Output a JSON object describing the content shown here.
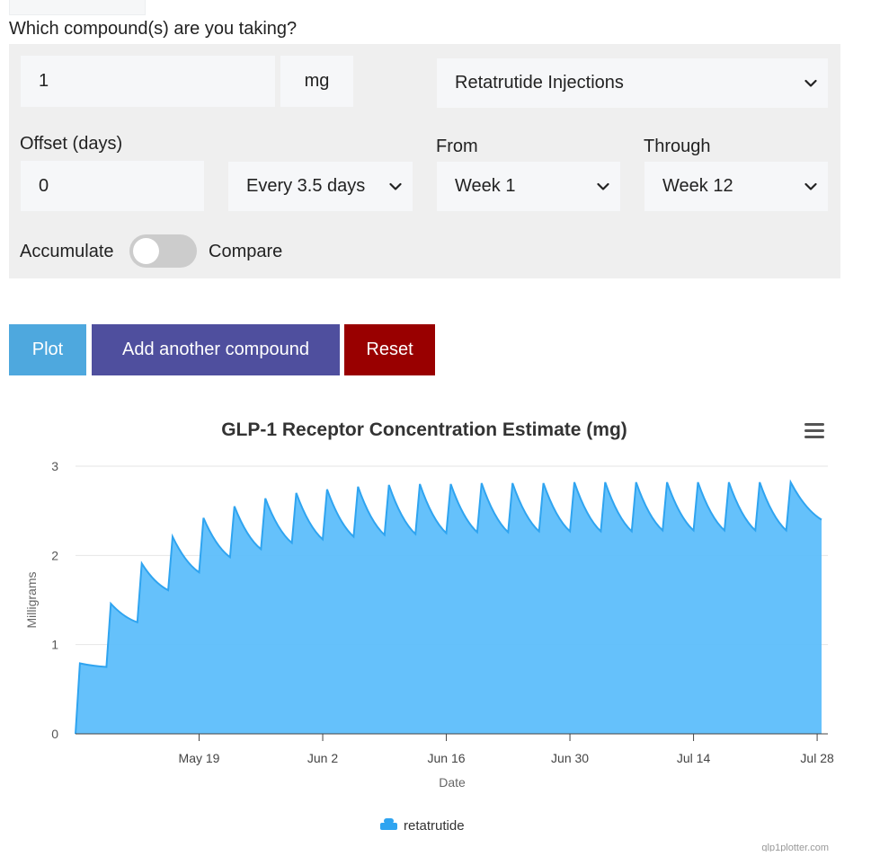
{
  "form": {
    "question": "Which compound(s) are you taking?",
    "dose_value": "1",
    "dose_unit": "mg",
    "compound": "Retatrutide Injections",
    "offset_label": "Offset (days)",
    "offset_value": "0",
    "frequency": "Every 3.5 days",
    "from_label": "From",
    "from_value": "Week 1",
    "through_label": "Through",
    "through_value": "Week 12",
    "toggle_left": "Accumulate",
    "toggle_right": "Compare"
  },
  "buttons": {
    "plot": "Plot",
    "add": "Add another compound",
    "reset": "Reset"
  },
  "colors": {
    "plot": "#4ea8de",
    "add": "#4f4f9e",
    "reset": "#990000",
    "area": "#5dbefb",
    "line": "#2fa4f0"
  },
  "chart_data": {
    "type": "area",
    "title": "GLP-1 Receptor Concentration Estimate (mg)",
    "xlabel": "Date",
    "ylabel": "Milligrams",
    "ylim": [
      0,
      3
    ],
    "yticks": [
      "0",
      "1",
      "2",
      "3"
    ],
    "xticks": [
      "May 19",
      "Jun 2",
      "Jun 16",
      "Jun 30",
      "Jul 14",
      "Jul 28"
    ],
    "x_start": "May 5",
    "dose_interval_days": 3.5,
    "series": [
      {
        "name": "retatrutide",
        "dose_day": [
          0,
          3.5,
          7,
          10.5,
          14,
          17.5,
          21,
          24.5,
          28,
          31.5,
          35,
          38.5,
          42,
          45.5,
          49,
          52.5,
          56,
          59.5,
          63,
          66.5,
          70,
          73.5,
          77,
          80.5
        ],
        "peak_mg": [
          0.79,
          1.46,
          1.91,
          2.21,
          2.42,
          2.55,
          2.64,
          2.7,
          2.74,
          2.77,
          2.79,
          2.8,
          2.8,
          2.81,
          2.81,
          2.81,
          2.82,
          2.82,
          2.82,
          2.82,
          2.82,
          2.82,
          2.82,
          2.82
        ],
        "trough_mg": [
          0.75,
          1.25,
          1.61,
          1.81,
          1.98,
          2.07,
          2.14,
          2.18,
          2.21,
          2.23,
          2.24,
          2.25,
          2.26,
          2.26,
          2.27,
          2.27,
          2.27,
          2.27,
          2.28,
          2.28,
          2.28,
          2.28,
          2.28
        ],
        "end_mg": 2.4
      }
    ],
    "legend": [
      "retatrutide"
    ],
    "menu_icon": "hamburger-menu-icon"
  },
  "footer": {
    "credit": "glp1plotter.com"
  }
}
